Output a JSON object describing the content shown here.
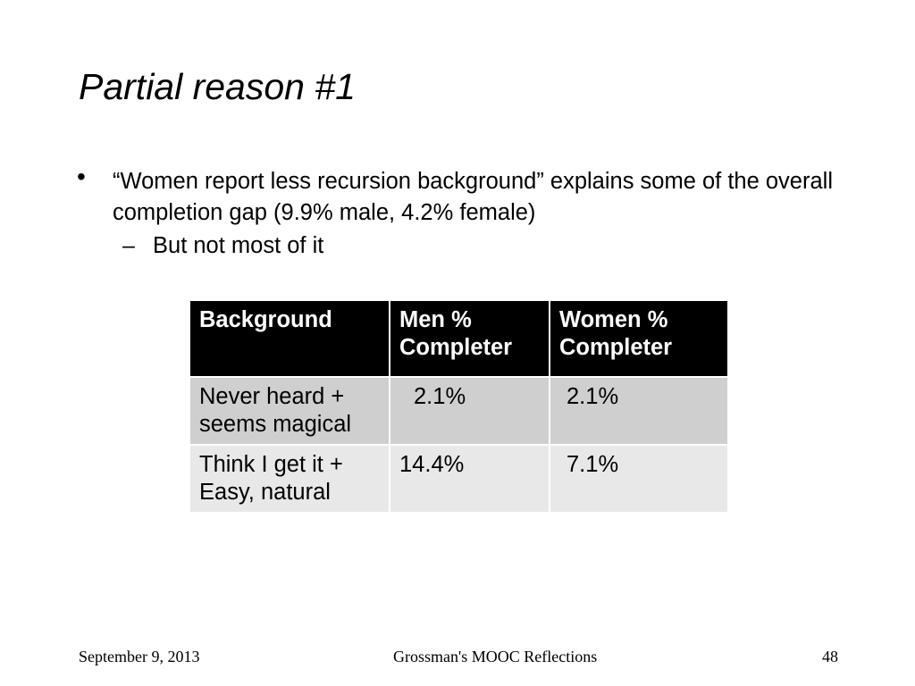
{
  "title": "Partial reason #1",
  "bullets": [
    {
      "text": "“Women report less recursion background” explains some of the overall completion gap (9.9% male, 4.2% female)",
      "sub": [
        "But not most of it"
      ]
    }
  ],
  "table": {
    "header": [
      "Background",
      "Men % Completer",
      "Women % Completer"
    ],
    "rows": [
      [
        "Never heard + seems magical",
        "2.1%",
        "2.1%"
      ],
      [
        "Think I get it + Easy, natural",
        "14.4%",
        "7.1%"
      ]
    ]
  },
  "footer": {
    "date": "September 9, 2013",
    "center": "Grossman's MOOC Reflections",
    "page": "48"
  }
}
